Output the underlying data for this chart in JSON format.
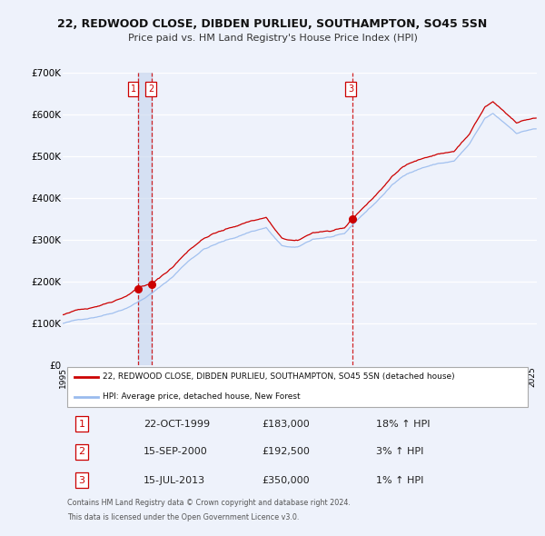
{
  "title": "22, REDWOOD CLOSE, DIBDEN PURLIEU, SOUTHAMPTON, SO45 5SN",
  "subtitle": "Price paid vs. HM Land Registry's House Price Index (HPI)",
  "ylim": [
    0,
    700000
  ],
  "yticks": [
    0,
    100000,
    200000,
    300000,
    400000,
    500000,
    600000,
    700000
  ],
  "ytick_labels": [
    "£0",
    "£100K",
    "£200K",
    "£300K",
    "£400K",
    "£500K",
    "£600K",
    "£700K"
  ],
  "xlim_start": 1995.0,
  "xlim_end": 2025.3,
  "xticks": [
    1995,
    1996,
    1997,
    1998,
    1999,
    2000,
    2001,
    2002,
    2003,
    2004,
    2005,
    2006,
    2007,
    2008,
    2009,
    2010,
    2011,
    2012,
    2013,
    2014,
    2015,
    2016,
    2017,
    2018,
    2019,
    2020,
    2021,
    2022,
    2023,
    2024,
    2025
  ],
  "bg_color": "#eef2fb",
  "grid_color": "#ffffff",
  "line1_color": "#cc0000",
  "line2_color": "#99bbee",
  "sale_color": "#cc0000",
  "legend_label1": "22, REDWOOD CLOSE, DIBDEN PURLIEU, SOUTHAMPTON, SO45 5SN (detached house)",
  "legend_label2": "HPI: Average price, detached house, New Forest",
  "transactions": [
    {
      "num": 1,
      "date_float": 1999.81,
      "price": 183000,
      "label": "1",
      "pct": "18%",
      "date_str": "22-OCT-1999"
    },
    {
      "num": 2,
      "date_float": 2000.71,
      "price": 192500,
      "label": "2",
      "pct": "3%",
      "date_str": "15-SEP-2000"
    },
    {
      "num": 3,
      "date_float": 2013.54,
      "price": 350000,
      "label": "3",
      "pct": "1%",
      "date_str": "15-JUL-2013"
    }
  ],
  "vline_dates": [
    1999.81,
    2000.71,
    2013.54
  ],
  "vspan_start": 1999.81,
  "vspan_end": 2000.71,
  "trans_boxes": [
    [
      1999.5,
      660000,
      "1"
    ],
    [
      2000.65,
      660000,
      "2"
    ],
    [
      2013.4,
      660000,
      "3"
    ]
  ],
  "footer_line1": "Contains HM Land Registry data © Crown copyright and database right 2024.",
  "footer_line2": "This data is licensed under the Open Government Licence v3.0.",
  "row_data": [
    [
      "1",
      "22-OCT-1999",
      "£183,000",
      "18% ↑ HPI"
    ],
    [
      "2",
      "15-SEP-2000",
      "£192,500",
      "3% ↑ HPI"
    ],
    [
      "3",
      "15-JUL-2013",
      "£350,000",
      "1% ↑ HPI"
    ]
  ]
}
